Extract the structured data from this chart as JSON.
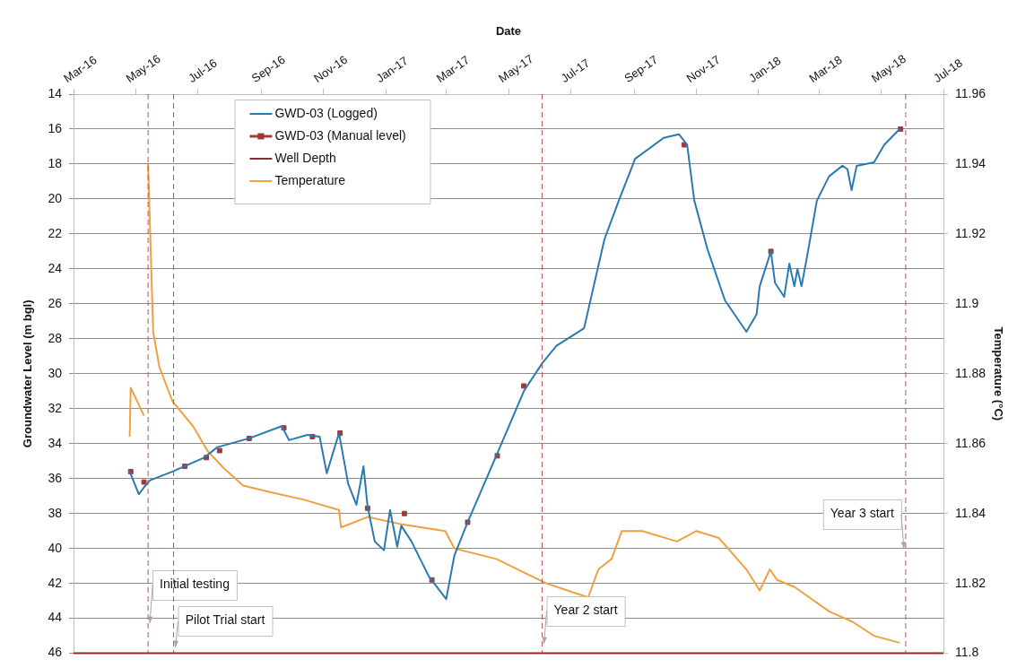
{
  "chart_data": {
    "type": "line",
    "xlabel": "Date",
    "ylabel": "Groundwater Level (m bgl)",
    "y2label": "Temperature (°C)",
    "xlim": [
      "2016-03-01",
      "2018-07-01"
    ],
    "xticks": [
      {
        "value": "2016-03-01",
        "label": "Mar-16"
      },
      {
        "value": "2016-05-01",
        "label": "May-16"
      },
      {
        "value": "2016-07-01",
        "label": "Jul-16"
      },
      {
        "value": "2016-09-01",
        "label": "Sep-16"
      },
      {
        "value": "2016-11-01",
        "label": "Nov-16"
      },
      {
        "value": "2017-01-01",
        "label": "Jan-17"
      },
      {
        "value": "2017-03-01",
        "label": "Mar-17"
      },
      {
        "value": "2017-05-01",
        "label": "May-17"
      },
      {
        "value": "2017-07-01",
        "label": "Jul-17"
      },
      {
        "value": "2017-09-01",
        "label": "Sep-17"
      },
      {
        "value": "2017-11-01",
        "label": "Nov-17"
      },
      {
        "value": "2018-01-01",
        "label": "Jan-18"
      },
      {
        "value": "2018-03-01",
        "label": "Mar-18"
      },
      {
        "value": "2018-05-01",
        "label": "May-18"
      },
      {
        "value": "2018-07-01",
        "label": "Jul-18"
      }
    ],
    "ylim": [
      46,
      14
    ],
    "yticks": [
      14,
      16,
      18,
      20,
      22,
      24,
      26,
      28,
      30,
      32,
      34,
      36,
      38,
      40,
      42,
      44,
      46
    ],
    "y2lim": [
      11.8,
      11.96
    ],
    "y2ticks": [
      11.8,
      11.82,
      11.84,
      11.86,
      11.88,
      11.9,
      11.92,
      11.94,
      11.96
    ],
    "grid": "y",
    "legend": "top",
    "series": [
      {
        "name": "GWD-03 (Logged)",
        "type": "line",
        "color": "#2a7ab0",
        "x": [
          "2016-04-25",
          "2016-05-04",
          "2016-05-09",
          "2016-05-15",
          "2016-06-06",
          "2016-07-07",
          "2016-07-20",
          "2016-08-20",
          "2016-09-21",
          "2016-09-28",
          "2016-10-16",
          "2016-10-28",
          "2016-11-04",
          "2016-11-16",
          "2016-11-25",
          "2016-12-03",
          "2016-12-10",
          "2016-12-14",
          "2016-12-21",
          "2016-12-30",
          "2017-01-05",
          "2017-01-12",
          "2017-01-16",
          "2017-01-26",
          "2017-02-12",
          "2017-03-01",
          "2017-03-09",
          "2017-03-22",
          "2017-04-19",
          "2017-05-16",
          "2017-06-03",
          "2017-06-17",
          "2017-07-14",
          "2017-08-03",
          "2017-08-17",
          "2017-09-02",
          "2017-09-30",
          "2017-10-15",
          "2017-10-23",
          "2017-10-30",
          "2017-11-12",
          "2017-11-29",
          "2017-12-20",
          "2017-12-30",
          "2018-01-02",
          "2018-01-13",
          "2018-01-17",
          "2018-01-26",
          "2018-01-31",
          "2018-02-05",
          "2018-02-08",
          "2018-02-12",
          "2018-02-18",
          "2018-02-27",
          "2018-03-11",
          "2018-03-24",
          "2018-03-29",
          "2018-04-02",
          "2018-04-07",
          "2018-04-24",
          "2018-05-04",
          "2018-05-19"
        ],
        "values": [
          35.6,
          36.9,
          36.5,
          36.1,
          35.6,
          34.8,
          34.2,
          33.7,
          33.0,
          33.8,
          33.5,
          33.6,
          35.7,
          33.4,
          36.3,
          37.5,
          35.3,
          37.6,
          39.6,
          40.1,
          37.8,
          39.9,
          38.7,
          39.6,
          41.6,
          42.9,
          40.4,
          38.5,
          34.7,
          31.0,
          29.4,
          28.4,
          27.4,
          22.3,
          20.1,
          17.7,
          16.5,
          16.3,
          16.9,
          20.1,
          22.9,
          25.8,
          27.6,
          26.6,
          25.0,
          23.0,
          24.8,
          25.6,
          23.7,
          25.0,
          24.0,
          25.0,
          23.1,
          20.1,
          18.7,
          18.1,
          18.3,
          19.5,
          18.1,
          17.9,
          16.9,
          16.0
        ]
      },
      {
        "name": "GWD-03 (Manual level)",
        "type": "scatter",
        "marker": "square",
        "color": "#9e3a3a",
        "x": [
          "2016-04-26",
          "2016-05-09",
          "2016-06-18",
          "2016-07-09",
          "2016-07-22",
          "2016-08-20",
          "2016-09-23",
          "2016-10-21",
          "2016-11-17",
          "2016-12-14",
          "2017-01-19",
          "2017-02-15",
          "2017-03-22",
          "2017-04-20",
          "2017-05-16",
          "2017-10-20",
          "2018-01-13",
          "2018-05-20"
        ],
        "values": [
          35.6,
          36.2,
          35.3,
          34.8,
          34.4,
          33.7,
          33.1,
          33.6,
          33.4,
          37.7,
          38.0,
          41.8,
          38.5,
          34.7,
          30.7,
          16.9,
          23.0,
          16.0
        ]
      },
      {
        "name": "Well Depth",
        "type": "line",
        "color": "#8b2a2a",
        "x": [
          "2016-03-01",
          "2018-07-01"
        ],
        "values": [
          46,
          46
        ]
      },
      {
        "name": "Temperature",
        "type": "line",
        "axis": "y2",
        "color": "#f0a040",
        "x": [
          "2016-04-25",
          "2016-04-26",
          "2016-05-09",
          "2016-05-11",
          "2016-05-13",
          "2016-05-18",
          "2016-05-24",
          "2016-06-06",
          "2016-06-26",
          "2016-07-10",
          "2016-07-26",
          "2016-08-14",
          "2016-09-11",
          "2016-10-12",
          "2016-11-16",
          "2016-11-18",
          "2016-12-14",
          "2017-01-15",
          "2017-02-28",
          "2017-03-09",
          "2017-04-19",
          "2017-06-07",
          "2017-07-18",
          "2017-07-28",
          "2017-08-10",
          "2017-08-20",
          "2017-09-09",
          "2017-10-13",
          "2017-11-01",
          "2017-11-23",
          "2017-12-20",
          "2018-01-02",
          "2018-01-12",
          "2018-01-19",
          "2018-02-05",
          "2018-03-11",
          "2018-04-03",
          "2018-04-24",
          "2018-05-19"
        ],
        "values": [
          11.862,
          11.876,
          11.868,
          null,
          11.94,
          11.892,
          11.882,
          11.872,
          11.865,
          11.858,
          11.853,
          11.848,
          11.846,
          11.844,
          11.841,
          11.836,
          11.839,
          11.837,
          11.835,
          11.83,
          11.827,
          11.82,
          11.816,
          11.824,
          11.827,
          11.835,
          11.835,
          11.832,
          11.835,
          11.833,
          11.824,
          11.818,
          11.824,
          11.821,
          11.819,
          11.812,
          11.809,
          11.805,
          11.803
        ]
      }
    ],
    "ref_lines": [
      {
        "axis": "x",
        "value": "2016-05-13",
        "label": "Initial testing",
        "color": "#c0504d",
        "line_style": "dashed"
      },
      {
        "axis": "x",
        "value": "2016-06-07",
        "label": "Pilot Trial start",
        "color": "#c0504d",
        "line_style": "dashed"
      },
      {
        "axis": "x",
        "value": "2017-06-03",
        "label": "Year 2 start",
        "color": "#c0504d",
        "line_style": "dashed"
      },
      {
        "axis": "x",
        "value": "2018-05-25",
        "label": "Year 3 start",
        "color": "#c0504d",
        "line_style": "dashed"
      }
    ]
  }
}
